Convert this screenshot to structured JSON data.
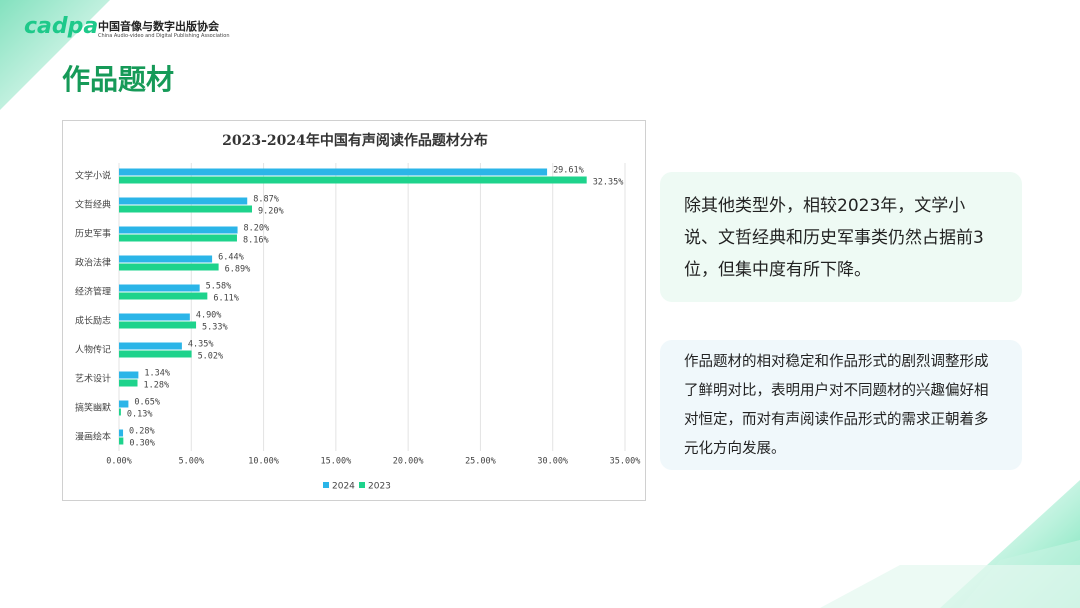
{
  "header": {
    "logo": "cadpa",
    "org_name": "中国音像与数字出版协会",
    "org_name_en": "China Audio-video and Digital Publishing Association",
    "title": "作品题材"
  },
  "chart_data": {
    "type": "bar",
    "orientation": "horizontal",
    "title": "2023-2024年中国有声阅读作品题材分布",
    "categories": [
      "文学小说",
      "文哲经典",
      "历史军事",
      "政治法律",
      "经济管理",
      "成长励志",
      "人物传记",
      "艺术设计",
      "搞笑幽默",
      "漫画绘本"
    ],
    "series": [
      {
        "name": "2024",
        "color": "#2bb5e8",
        "values": [
          29.61,
          8.87,
          8.2,
          6.44,
          5.58,
          4.9,
          4.35,
          1.34,
          0.65,
          0.28
        ],
        "value_labels": [
          "29.61%",
          "8.87%",
          "8.20%",
          "6.44%",
          "5.58%",
          "4.90%",
          "4.35%",
          "1.34%",
          "0.65%",
          "0.28%"
        ]
      },
      {
        "name": "2023",
        "color": "#1ed38c",
        "values": [
          32.35,
          9.2,
          8.16,
          6.89,
          6.11,
          5.33,
          5.02,
          1.28,
          0.13,
          0.3
        ],
        "value_labels": [
          "32.35%",
          "9.20%",
          "8.16%",
          "6.89%",
          "6.11%",
          "5.33%",
          "5.02%",
          "1.28%",
          "0.13%",
          "0.30%"
        ]
      }
    ],
    "xlim": [
      0,
      35
    ],
    "xticks": [
      {
        "value": 0,
        "label": "0.00%"
      },
      {
        "value": 5,
        "label": "5.00%"
      },
      {
        "value": 10,
        "label": "10.00%"
      },
      {
        "value": 15,
        "label": "15.00%"
      },
      {
        "value": 20,
        "label": "20.00%"
      },
      {
        "value": 25,
        "label": "25.00%"
      },
      {
        "value": 30,
        "label": "30.00%"
      },
      {
        "value": 35,
        "label": "35.00%"
      }
    ],
    "grid": true,
    "legend": "bottom"
  },
  "notes": [
    "除其他类型外，相较2023年，文学小说、文哲经典和历史军事类仍然占据前3位，但集中度有所下降。",
    "作品题材的相对稳定和作品形式的剧烈调整形成了鲜明对比，表明用户对不同题材的兴趣偏好相对恒定，而对有声阅读作品形式的需求正朝着多元化方向发展。"
  ]
}
